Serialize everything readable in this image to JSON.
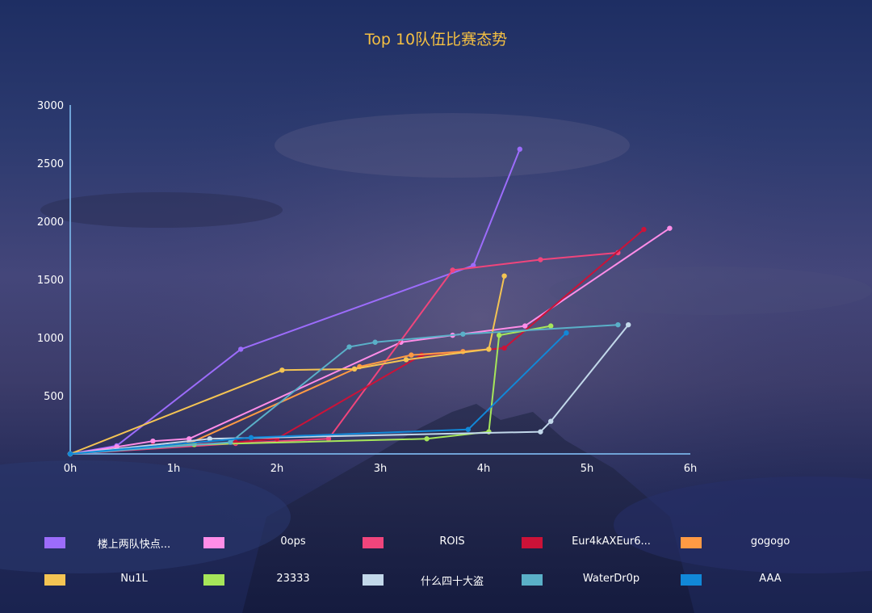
{
  "chart_data": {
    "type": "line",
    "title": "Top 10队伍比赛态势",
    "xlabel": "",
    "ylabel": "",
    "x_ticks": [
      "0h",
      "1h",
      "2h",
      "3h",
      "4h",
      "5h",
      "6h"
    ],
    "y_ticks": [
      "500",
      "1000",
      "1500",
      "2000",
      "2500",
      "3000"
    ],
    "xlim": [
      0,
      6
    ],
    "ylim": [
      0,
      3000
    ],
    "grid": false,
    "legend_position": "bottom",
    "series": [
      {
        "name": "楼上两队快点...",
        "color": "#9c6cfb",
        "points": [
          [
            0,
            0
          ],
          [
            0.45,
            70
          ],
          [
            1.65,
            900
          ],
          [
            3.9,
            1620
          ],
          [
            4.35,
            2620
          ]
        ]
      },
      {
        "name": "0ops",
        "color": "#ff8de8",
        "points": [
          [
            0,
            0
          ],
          [
            0.45,
            60
          ],
          [
            0.8,
            110
          ],
          [
            1.15,
            130
          ],
          [
            3.2,
            960
          ],
          [
            3.7,
            1020
          ],
          [
            4.4,
            1100
          ],
          [
            5.8,
            1940
          ]
        ]
      },
      {
        "name": "ROIS",
        "color": "#f0457c",
        "points": [
          [
            0,
            0
          ],
          [
            1.6,
            90
          ],
          [
            2.5,
            130
          ],
          [
            3.7,
            1580
          ],
          [
            4.55,
            1670
          ],
          [
            5.3,
            1730
          ]
        ]
      },
      {
        "name": "Eur4kAXEur6...",
        "color": "#cc1238",
        "points": [
          [
            0,
            0
          ],
          [
            0.8,
            70
          ],
          [
            1.6,
            100
          ],
          [
            2,
            130
          ],
          [
            3.4,
            850
          ],
          [
            4.2,
            910
          ],
          [
            5.55,
            1930
          ]
        ]
      },
      {
        "name": "gogogo",
        "color": "#ff9a44",
        "points": [
          [
            0,
            0
          ],
          [
            1.15,
            90
          ],
          [
            2.8,
            750
          ],
          [
            3.3,
            850
          ],
          [
            3.8,
            880
          ],
          [
            4.05,
            900
          ]
        ]
      },
      {
        "name": "Nu1L",
        "color": "#f4c453",
        "points": [
          [
            0,
            0
          ],
          [
            2.05,
            720
          ],
          [
            2.75,
            730
          ],
          [
            3.25,
            810
          ],
          [
            4.05,
            900
          ],
          [
            4.2,
            1530
          ]
        ]
      },
      {
        "name": "23333",
        "color": "#a6e65a",
        "points": [
          [
            0,
            0
          ],
          [
            1.2,
            80
          ],
          [
            3.45,
            130
          ],
          [
            4.05,
            190
          ],
          [
            4.15,
            1020
          ],
          [
            4.65,
            1100
          ]
        ]
      },
      {
        "name": "什么四十大盗",
        "color": "#c2d8ea",
        "points": [
          [
            0,
            0
          ],
          [
            1.35,
            130
          ],
          [
            4.55,
            190
          ],
          [
            4.65,
            280
          ],
          [
            5.4,
            1110
          ]
        ]
      },
      {
        "name": "WaterDr0p",
        "color": "#5ab0c8",
        "points": [
          [
            0,
            0
          ],
          [
            1.55,
            100
          ],
          [
            2.7,
            920
          ],
          [
            2.95,
            960
          ],
          [
            3.8,
            1030
          ],
          [
            5.3,
            1110
          ]
        ]
      },
      {
        "name": "AAA",
        "color": "#1188d8",
        "points": [
          [
            0,
            0
          ],
          [
            1.75,
            140
          ],
          [
            3.85,
            210
          ],
          [
            4.8,
            1040
          ]
        ]
      }
    ]
  }
}
